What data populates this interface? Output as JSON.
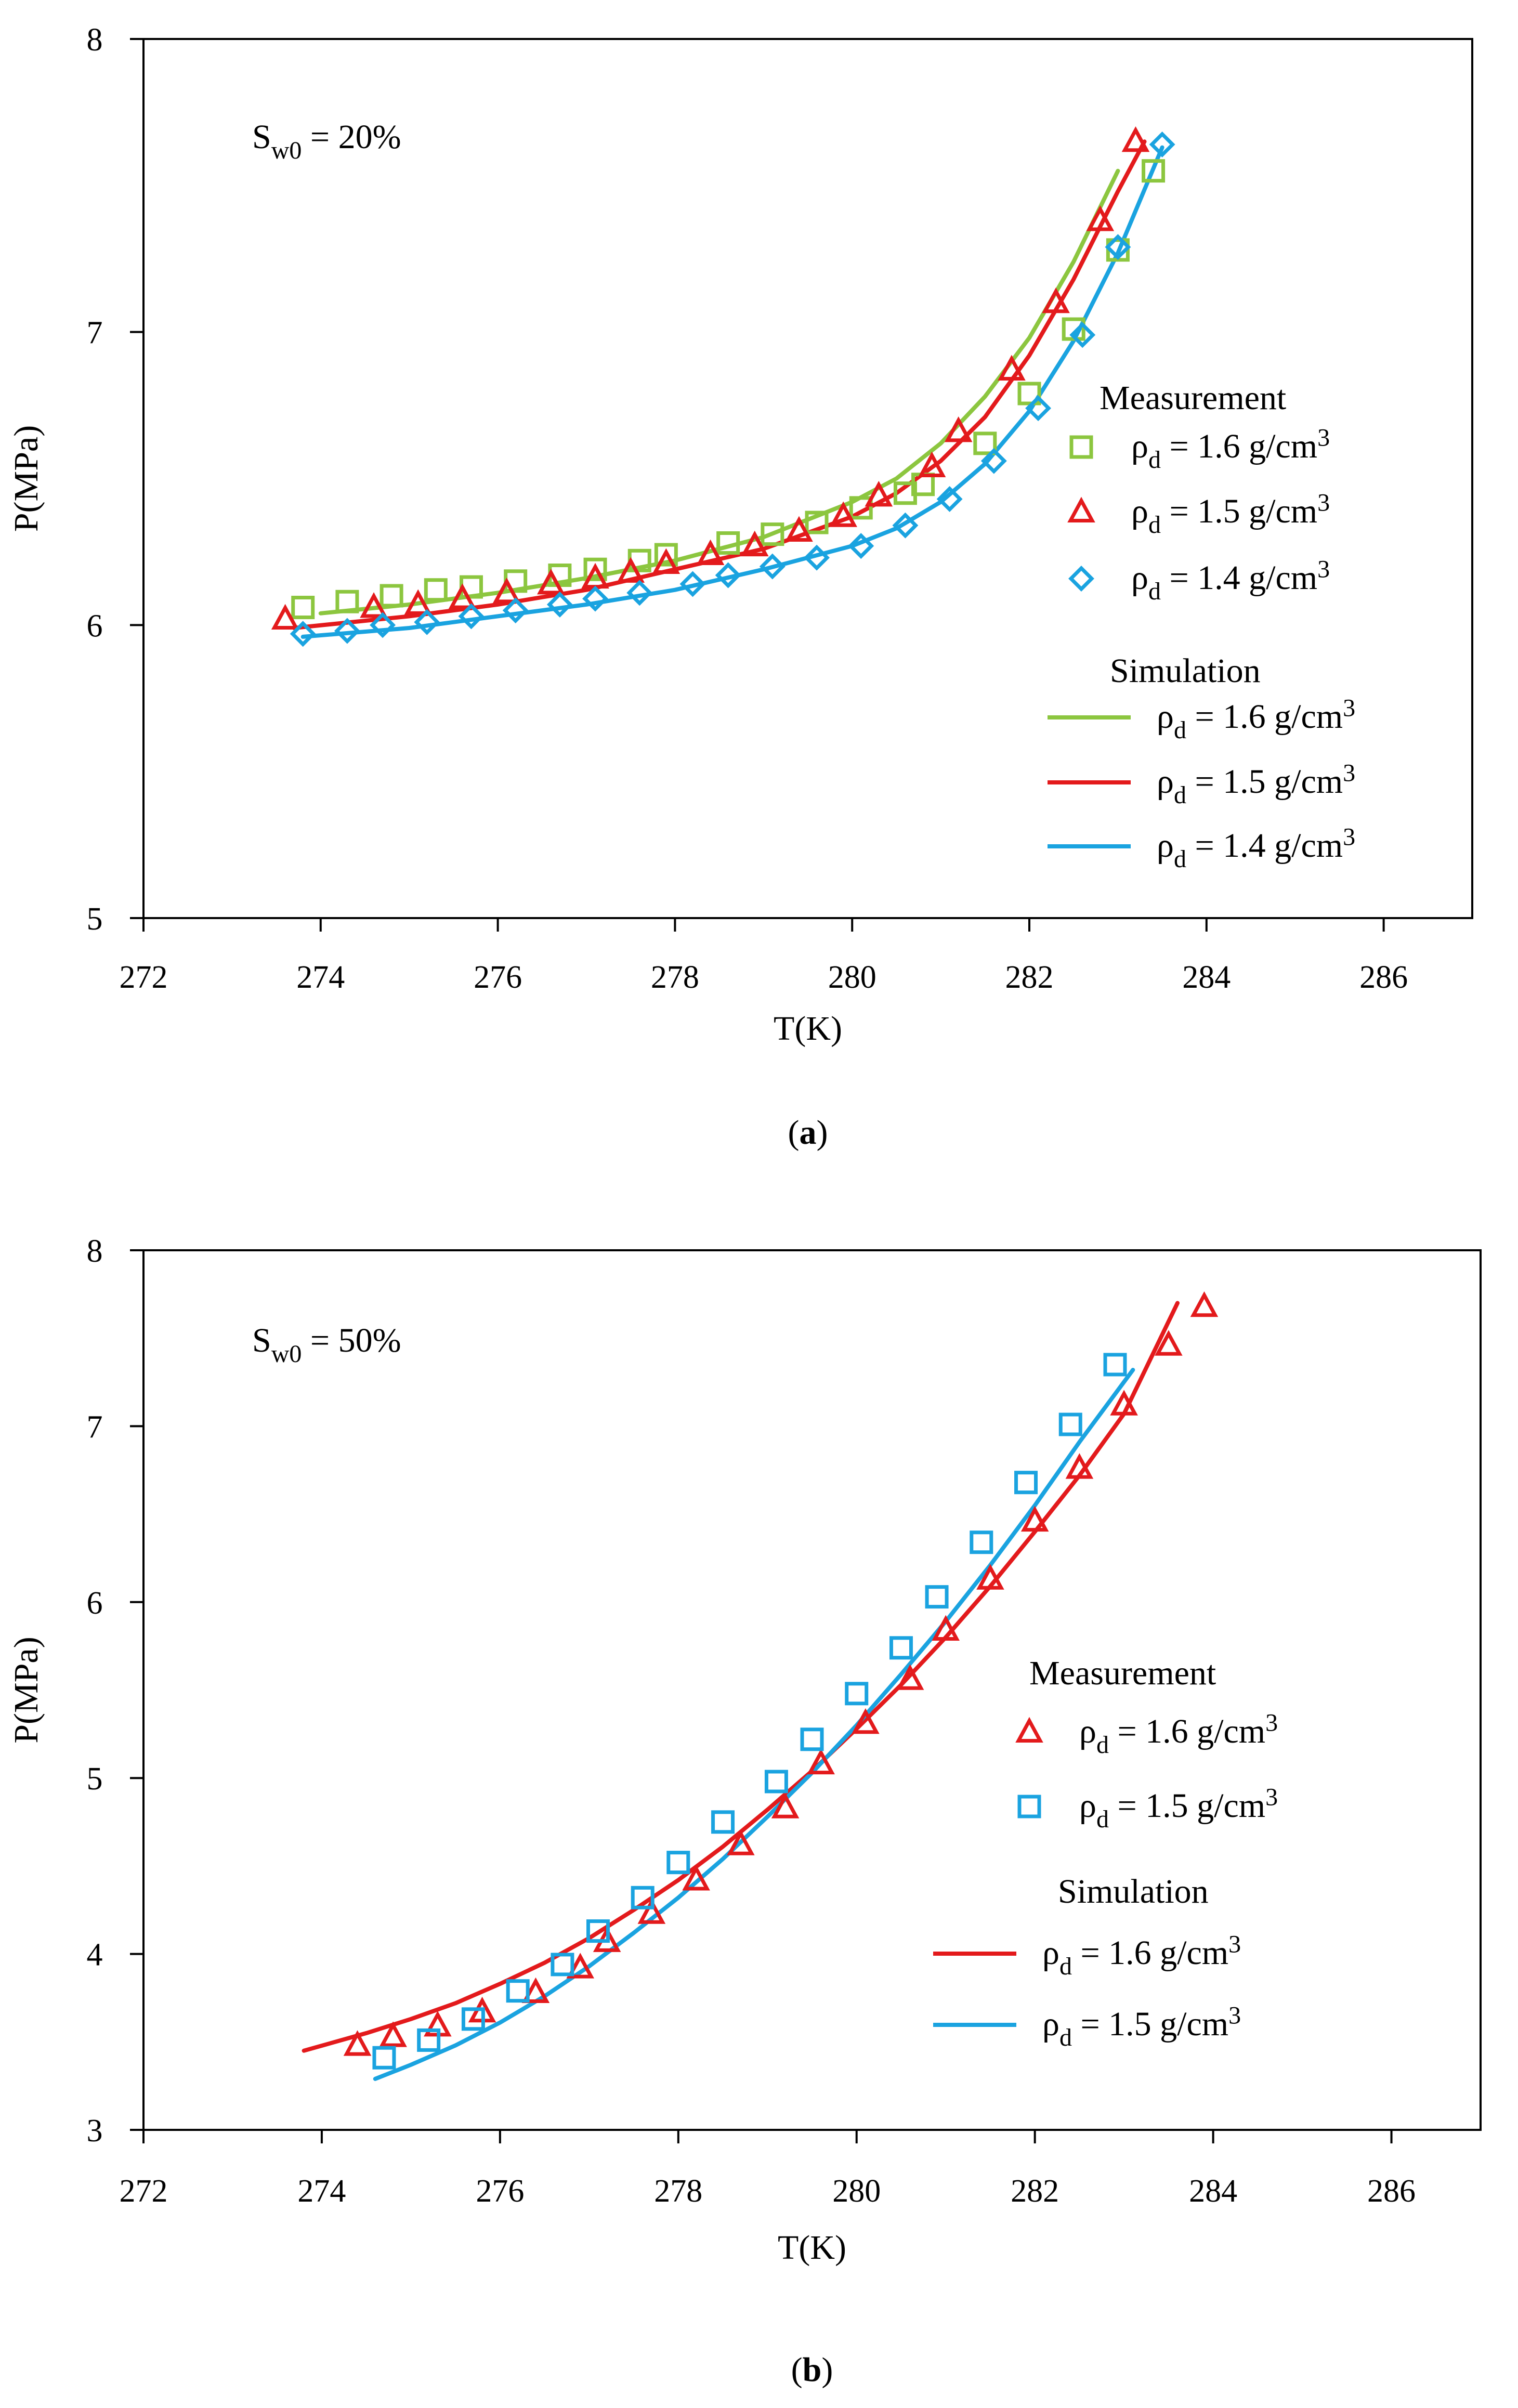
{
  "colors": {
    "green": "#8cc63f",
    "red": "#e31a1c",
    "blue": "#1aa3e0",
    "axis": "#000000"
  },
  "chart_data": [
    {
      "type": "scatter",
      "panel_label": "a",
      "annotation": {
        "main": "S",
        "sub": "w0",
        "rest": " = 20%"
      },
      "xlabel": "T(K)",
      "ylabel": "P(MPa)",
      "xlim": [
        272,
        287
      ],
      "ylim": [
        5,
        8
      ],
      "xticks": [
        272,
        274,
        276,
        278,
        280,
        282,
        284,
        286
      ],
      "yticks": [
        5,
        6,
        7,
        8
      ],
      "grid": false,
      "legend": {
        "position": "right",
        "measurement_title": "Measurement",
        "simulation_title": "Simulation"
      },
      "measurement": [
        {
          "label": {
            "main": "ρ",
            "sub": "d",
            "rest": " = 1.6 g/cm",
            "sup": "3"
          },
          "marker": "square",
          "color": "green",
          "points": [
            [
              273.8,
              6.06
            ],
            [
              274.3,
              6.08
            ],
            [
              274.8,
              6.1
            ],
            [
              275.3,
              6.12
            ],
            [
              275.7,
              6.13
            ],
            [
              276.2,
              6.15
            ],
            [
              276.7,
              6.17
            ],
            [
              277.1,
              6.19
            ],
            [
              277.6,
              6.22
            ],
            [
              277.9,
              6.24
            ],
            [
              278.6,
              6.28
            ],
            [
              279.1,
              6.31
            ],
            [
              279.6,
              6.35
            ],
            [
              280.1,
              6.4
            ],
            [
              280.6,
              6.45
            ],
            [
              280.8,
              6.48
            ],
            [
              281.5,
              6.62
            ],
            [
              282.0,
              6.79
            ],
            [
              282.5,
              7.01
            ],
            [
              283.0,
              7.28
            ],
            [
              283.4,
              7.55
            ]
          ]
        },
        {
          "label": {
            "main": "ρ",
            "sub": "d",
            "rest": " = 1.5 g/cm",
            "sup": "3"
          },
          "marker": "triangle",
          "color": "red",
          "points": [
            [
              273.6,
              6.02
            ],
            [
              274.6,
              6.06
            ],
            [
              275.1,
              6.07
            ],
            [
              275.6,
              6.09
            ],
            [
              276.1,
              6.11
            ],
            [
              276.6,
              6.14
            ],
            [
              277.1,
              6.16
            ],
            [
              277.5,
              6.18
            ],
            [
              277.9,
              6.21
            ],
            [
              278.4,
              6.24
            ],
            [
              278.9,
              6.27
            ],
            [
              279.4,
              6.32
            ],
            [
              279.9,
              6.37
            ],
            [
              280.3,
              6.44
            ],
            [
              280.9,
              6.54
            ],
            [
              281.2,
              6.66
            ],
            [
              281.8,
              6.87
            ],
            [
              282.3,
              7.1
            ],
            [
              282.8,
              7.38
            ],
            [
              283.2,
              7.65
            ]
          ]
        },
        {
          "label": {
            "main": "ρ",
            "sub": "d",
            "rest": " = 1.4 g/cm",
            "sup": "3"
          },
          "marker": "diamond",
          "color": "blue",
          "points": [
            [
              273.8,
              5.97
            ],
            [
              274.3,
              5.98
            ],
            [
              274.7,
              6.0
            ],
            [
              275.2,
              6.01
            ],
            [
              275.7,
              6.03
            ],
            [
              276.2,
              6.05
            ],
            [
              276.7,
              6.07
            ],
            [
              277.1,
              6.09
            ],
            [
              277.6,
              6.11
            ],
            [
              278.2,
              6.14
            ],
            [
              278.6,
              6.17
            ],
            [
              279.1,
              6.2
            ],
            [
              279.6,
              6.23
            ],
            [
              280.1,
              6.27
            ],
            [
              280.6,
              6.34
            ],
            [
              281.1,
              6.43
            ],
            [
              281.6,
              6.56
            ],
            [
              282.1,
              6.74
            ],
            [
              282.6,
              6.99
            ],
            [
              283.0,
              7.29
            ],
            [
              283.5,
              7.64
            ]
          ]
        }
      ],
      "simulation": [
        {
          "label": {
            "main": "ρ",
            "sub": "d",
            "rest": " = 1.6 g/cm",
            "sup": "3"
          },
          "color": "green",
          "points": [
            [
              274.0,
              6.04
            ],
            [
              275.0,
              6.07
            ],
            [
              276.0,
              6.11
            ],
            [
              277.0,
              6.16
            ],
            [
              278.0,
              6.22
            ],
            [
              279.0,
              6.3
            ],
            [
              280.0,
              6.42
            ],
            [
              280.5,
              6.5
            ],
            [
              281.0,
              6.62
            ],
            [
              281.5,
              6.78
            ],
            [
              282.0,
              6.98
            ],
            [
              282.5,
              7.24
            ],
            [
              283.0,
              7.55
            ]
          ]
        },
        {
          "label": {
            "main": "ρ",
            "sub": "d",
            "rest": " = 1.5 g/cm",
            "sup": "3"
          },
          "color": "red",
          "points": [
            [
              273.7,
              5.99
            ],
            [
              275.0,
              6.03
            ],
            [
              276.0,
              6.07
            ],
            [
              277.0,
              6.12
            ],
            [
              278.0,
              6.19
            ],
            [
              279.0,
              6.26
            ],
            [
              280.0,
              6.37
            ],
            [
              280.5,
              6.45
            ],
            [
              281.0,
              6.56
            ],
            [
              281.5,
              6.71
            ],
            [
              282.0,
              6.92
            ],
            [
              282.5,
              7.18
            ],
            [
              283.0,
              7.48
            ],
            [
              283.3,
              7.65
            ]
          ]
        },
        {
          "label": {
            "main": "ρ",
            "sub": "d",
            "rest": " = 1.4 g/cm",
            "sup": "3"
          },
          "color": "blue",
          "points": [
            [
              273.8,
              5.96
            ],
            [
              275.0,
              5.99
            ],
            [
              276.0,
              6.03
            ],
            [
              277.0,
              6.07
            ],
            [
              278.0,
              6.12
            ],
            [
              279.0,
              6.19
            ],
            [
              280.0,
              6.27
            ],
            [
              280.5,
              6.33
            ],
            [
              281.0,
              6.42
            ],
            [
              281.5,
              6.55
            ],
            [
              282.0,
              6.73
            ],
            [
              282.5,
              6.97
            ],
            [
              283.0,
              7.27
            ],
            [
              283.5,
              7.63
            ]
          ]
        }
      ]
    },
    {
      "type": "scatter",
      "panel_label": "b",
      "annotation": {
        "main": "S",
        "sub": "w0",
        "rest": " = 50%"
      },
      "xlabel": "T(K)",
      "ylabel": "P(MPa)",
      "xlim": [
        272,
        287
      ],
      "ylim": [
        3,
        8
      ],
      "xticks": [
        272,
        274,
        276,
        278,
        280,
        282,
        284,
        286
      ],
      "yticks": [
        3,
        4,
        5,
        6,
        7,
        8
      ],
      "grid": false,
      "legend": {
        "position": "right",
        "measurement_title": "Measurement",
        "simulation_title": "Simulation"
      },
      "measurement": [
        {
          "label": {
            "main": "ρ",
            "sub": "d",
            "rest": " = 1.6 g/cm",
            "sup": "3"
          },
          "marker": "triangle",
          "color": "red",
          "points": [
            [
              274.4,
              3.48
            ],
            [
              274.8,
              3.53
            ],
            [
              275.3,
              3.59
            ],
            [
              275.8,
              3.67
            ],
            [
              276.4,
              3.78
            ],
            [
              276.9,
              3.92
            ],
            [
              277.2,
              4.07
            ],
            [
              277.7,
              4.23
            ],
            [
              278.2,
              4.42
            ],
            [
              278.7,
              4.62
            ],
            [
              279.2,
              4.83
            ],
            [
              279.6,
              5.08
            ],
            [
              280.1,
              5.31
            ],
            [
              280.6,
              5.56
            ],
            [
              281.0,
              5.84
            ],
            [
              281.5,
              6.13
            ],
            [
              282.0,
              6.46
            ],
            [
              282.5,
              6.76
            ],
            [
              283.0,
              7.12
            ],
            [
              283.5,
              7.46
            ],
            [
              283.9,
              7.68
            ]
          ]
        },
        {
          "label": {
            "main": "ρ",
            "sub": "d",
            "rest": " = 1.5 g/cm",
            "sup": "3"
          },
          "marker": "square",
          "color": "blue",
          "points": [
            [
              274.7,
              3.41
            ],
            [
              275.2,
              3.51
            ],
            [
              275.7,
              3.63
            ],
            [
              276.2,
              3.79
            ],
            [
              276.7,
              3.94
            ],
            [
              277.1,
              4.13
            ],
            [
              277.6,
              4.32
            ],
            [
              278.0,
              4.52
            ],
            [
              278.5,
              4.75
            ],
            [
              279.1,
              4.98
            ],
            [
              279.5,
              5.22
            ],
            [
              280.0,
              5.48
            ],
            [
              280.5,
              5.74
            ],
            [
              280.9,
              6.03
            ],
            [
              281.4,
              6.34
            ],
            [
              281.9,
              6.68
            ],
            [
              282.4,
              7.01
            ],
            [
              282.9,
              7.35
            ]
          ]
        }
      ],
      "simulation": [
        {
          "label": {
            "main": "ρ",
            "sub": "d",
            "rest": " = 1.6 g/cm",
            "sup": "3"
          },
          "color": "red",
          "points": [
            [
              273.8,
              3.45
            ],
            [
              274.5,
              3.55
            ],
            [
              275.0,
              3.63
            ],
            [
              275.5,
              3.72
            ],
            [
              276.0,
              3.83
            ],
            [
              276.5,
              3.95
            ],
            [
              277.0,
              4.09
            ],
            [
              277.5,
              4.25
            ],
            [
              278.0,
              4.42
            ],
            [
              278.5,
              4.61
            ],
            [
              279.0,
              4.82
            ],
            [
              279.5,
              5.04
            ],
            [
              280.0,
              5.28
            ],
            [
              280.5,
              5.53
            ],
            [
              281.0,
              5.8
            ],
            [
              281.5,
              6.09
            ],
            [
              282.0,
              6.4
            ],
            [
              282.5,
              6.72
            ],
            [
              283.0,
              7.07
            ],
            [
              283.6,
              7.7
            ]
          ]
        },
        {
          "label": {
            "main": "ρ",
            "sub": "d",
            "rest": " = 1.5 g/cm",
            "sup": "3"
          },
          "color": "blue",
          "points": [
            [
              274.6,
              3.29
            ],
            [
              275.0,
              3.37
            ],
            [
              275.5,
              3.48
            ],
            [
              276.0,
              3.61
            ],
            [
              276.5,
              3.76
            ],
            [
              277.0,
              3.93
            ],
            [
              277.5,
              4.12
            ],
            [
              278.0,
              4.32
            ],
            [
              278.5,
              4.54
            ],
            [
              279.0,
              4.78
            ],
            [
              279.5,
              5.03
            ],
            [
              280.0,
              5.3
            ],
            [
              280.5,
              5.59
            ],
            [
              281.0,
              5.89
            ],
            [
              281.5,
              6.21
            ],
            [
              282.0,
              6.55
            ],
            [
              282.5,
              6.91
            ],
            [
              283.1,
              7.32
            ]
          ]
        }
      ]
    }
  ]
}
